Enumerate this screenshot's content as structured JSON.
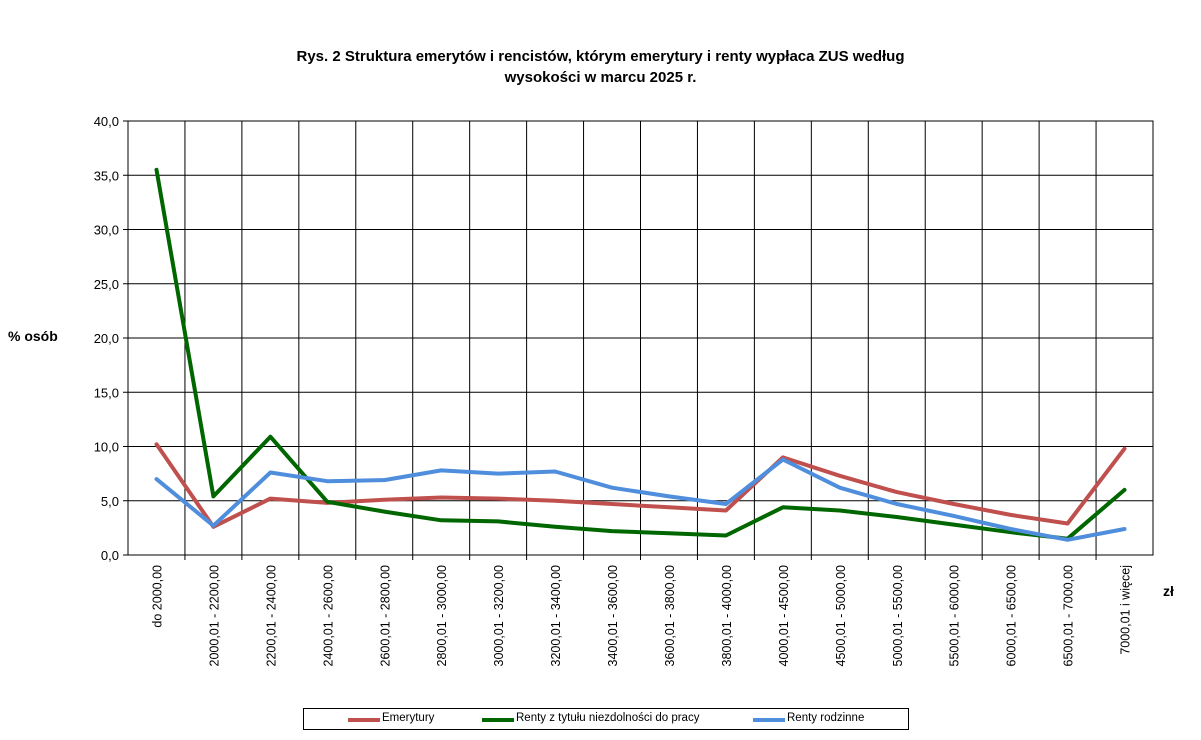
{
  "chart_data": {
    "type": "line",
    "title_line1": "Rys. 2 Struktura emerytów i rencistów, którym emerytury i renty wypłaca ZUS według",
    "title_line2": "wysokości w marcu 2025 r.",
    "ylabel": "% osób",
    "xunit": "zł",
    "ylim": [
      0,
      40
    ],
    "yticks": [
      "0,0",
      "5,0",
      "10,0",
      "15,0",
      "20,0",
      "25,0",
      "30,0",
      "35,0",
      "40,0"
    ],
    "ytick_values": [
      0,
      5,
      10,
      15,
      20,
      25,
      30,
      35,
      40
    ],
    "grid": true,
    "legend_position": "bottom",
    "categories": [
      "do 2000,00",
      "2000,01 - 2200,00",
      "2200,01 - 2400,00",
      "2400,01 - 2600,00",
      "2600,01 - 2800,00",
      "2800,01 - 3000,00",
      "3000,01 - 3200,00",
      "3200,01 - 3400,00",
      "3400,01 - 3600,00",
      "3600,01 - 3800,00",
      "3800,01 - 4000,00",
      "4000,01 - 4500,00",
      "4500,01 - 5000,00",
      "5000,01  -  5500,00",
      "5500,01  -  6000,00",
      "6000,01  -  6500,00",
      "6500,01  -  7000,00",
      "7000,01 i więcej"
    ],
    "series": [
      {
        "name": "Emerytury",
        "color": "#c0504d",
        "values": [
          10.2,
          2.6,
          5.2,
          4.8,
          5.1,
          5.3,
          5.2,
          5.0,
          4.7,
          4.4,
          4.1,
          9.0,
          7.3,
          5.8,
          4.7,
          3.7,
          2.9,
          9.8
        ]
      },
      {
        "name": "Renty z tytułu niezdolności do pracy",
        "color": "#006600",
        "values": [
          35.5,
          5.4,
          10.9,
          4.9,
          4.0,
          3.2,
          3.1,
          2.6,
          2.2,
          2.0,
          1.8,
          4.4,
          4.1,
          3.5,
          2.8,
          2.1,
          1.5,
          6.0
        ]
      },
      {
        "name": "Renty rodzinne",
        "color": "#4f8edc",
        "values": [
          7.0,
          2.7,
          7.6,
          6.8,
          6.9,
          7.8,
          7.5,
          7.7,
          6.2,
          5.4,
          4.7,
          8.8,
          6.2,
          4.7,
          3.6,
          2.4,
          1.4,
          2.4
        ]
      }
    ]
  }
}
